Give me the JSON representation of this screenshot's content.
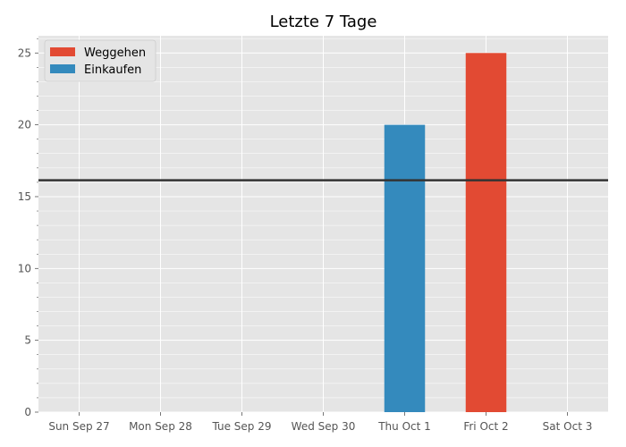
{
  "chart_data": {
    "type": "bar",
    "title": "Letzte 7 Tage",
    "xlabel": "",
    "ylabel": "",
    "categories": [
      "Sun Sep 27",
      "Mon Sep 28",
      "Tue Sep 29",
      "Wed Sep 30",
      "Thu Oct 1",
      "Fri Oct 2",
      "Sat Oct 3"
    ],
    "series": [
      {
        "name": "Weggehen",
        "color": "#E24A33",
        "values": [
          0,
          0,
          0,
          0,
          0,
          25,
          0
        ]
      },
      {
        "name": "Einkaufen",
        "color": "#348ABD",
        "values": [
          0,
          0,
          0,
          0,
          20,
          0,
          0
        ]
      }
    ],
    "reference_line": {
      "value": 16.14,
      "color": "#333333"
    },
    "ylim": [
      0,
      26.2
    ],
    "yticks": [
      0,
      5,
      10,
      15,
      20,
      25
    ],
    "y_minor_step": 1,
    "grid": true,
    "legend_position": "upper-left",
    "background_color": "#E5E5E5"
  }
}
